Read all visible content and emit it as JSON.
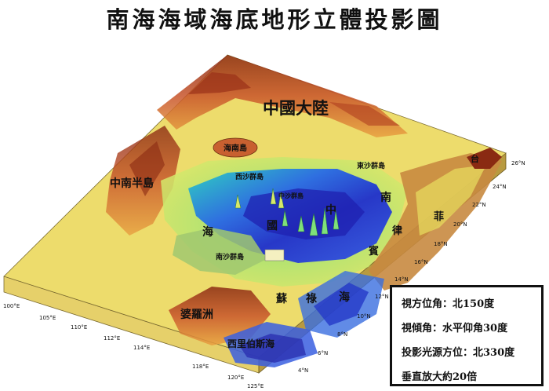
{
  "title": "南海海域海底地形立體投影圖",
  "regions": {
    "china_mainland": "中國大陸",
    "indochina": "中南半島",
    "hainan": "海南島",
    "xisha": "西沙群島",
    "dongsha": "東沙群島",
    "zhongsha": "中沙群島",
    "nansha": "南沙群島",
    "south_sea_1": "南",
    "south_sea_2": "中",
    "south_sea_3": "國",
    "south_sea_4": "海",
    "philippines_1": "菲",
    "philippines_2": "律",
    "philippines_3": "賓",
    "taiwan": "台",
    "sulu_1": "蘇",
    "sulu_2": "祿",
    "sulu_3": "海",
    "borneo": "婆羅洲",
    "celebes": "西里伯斯海"
  },
  "longitude_ticks": [
    "100°E",
    "105°E",
    "110°E",
    "112°E",
    "114°E",
    "118°E",
    "120°E",
    "125°E"
  ],
  "latitude_ticks": [
    "26°N",
    "24°N",
    "22°N",
    "20°N",
    "18°N",
    "16°N",
    "14°N",
    "12°N",
    "10°N",
    "8°N",
    "6°N",
    "4°N"
  ],
  "info": {
    "line1": "視方位角：北150度",
    "line2": "視傾角：水平仰角30度",
    "line3": "投影光源方位：北330度",
    "line4": "垂直放大約20倍"
  }
}
